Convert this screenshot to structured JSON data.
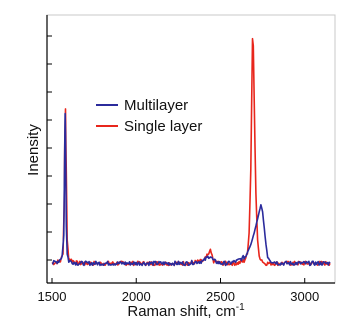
{
  "chart_data": {
    "type": "line",
    "xlabel": "Raman shift, cm",
    "xlabel_superscript": "-1",
    "ylabel": "Inensity",
    "xlim": [
      1500,
      3150
    ],
    "ylim": [
      0,
      1.0
    ],
    "xticks": [
      "1500",
      "2000",
      "2500",
      "3000"
    ],
    "xtick_values": [
      1500,
      2000,
      2500,
      3000
    ],
    "grid": false,
    "legend_position": "upper-left",
    "series": [
      {
        "name": "Multilayer",
        "color": "#2b2b9c",
        "x": [
          1500,
          1540,
          1560,
          1570,
          1575,
          1578,
          1580,
          1582,
          1585,
          1590,
          1600,
          1650,
          1700,
          1800,
          1900,
          2000,
          2100,
          2200,
          2300,
          2400,
          2430,
          2440,
          2450,
          2460,
          2500,
          2550,
          2600,
          2650,
          2680,
          2700,
          2710,
          2720,
          2730,
          2740,
          2750,
          2760,
          2770,
          2780,
          2800,
          2850,
          2900,
          3000,
          3100,
          3150
        ],
        "y": [
          0.02,
          0.03,
          0.05,
          0.14,
          0.46,
          0.66,
          0.58,
          0.42,
          0.18,
          0.06,
          0.03,
          0.02,
          0.02,
          0.02,
          0.02,
          0.02,
          0.02,
          0.02,
          0.02,
          0.03,
          0.05,
          0.05,
          0.04,
          0.03,
          0.02,
          0.02,
          0.03,
          0.05,
          0.1,
          0.15,
          0.18,
          0.21,
          0.24,
          0.27,
          0.24,
          0.17,
          0.1,
          0.05,
          0.03,
          0.02,
          0.02,
          0.02,
          0.02,
          0.02
        ]
      },
      {
        "name": "Single layer",
        "color": "#e8261c",
        "x": [
          1500,
          1550,
          1565,
          1572,
          1576,
          1580,
          1584,
          1590,
          1600,
          1650,
          1700,
          1800,
          1900,
          2000,
          2100,
          2200,
          2300,
          2400,
          2430,
          2440,
          2450,
          2460,
          2500,
          2550,
          2600,
          2640,
          2660,
          2670,
          2680,
          2685,
          2690,
          2695,
          2700,
          2710,
          2720,
          2730,
          2760,
          2800,
          2900,
          3000,
          3100,
          3150
        ],
        "y": [
          0.02,
          0.03,
          0.06,
          0.25,
          0.55,
          0.68,
          0.44,
          0.12,
          0.04,
          0.02,
          0.02,
          0.02,
          0.02,
          0.02,
          0.02,
          0.02,
          0.02,
          0.03,
          0.06,
          0.08,
          0.05,
          0.03,
          0.02,
          0.02,
          0.02,
          0.03,
          0.06,
          0.15,
          0.42,
          0.72,
          0.98,
          0.95,
          0.72,
          0.32,
          0.12,
          0.05,
          0.02,
          0.02,
          0.02,
          0.02,
          0.02,
          0.02
        ]
      }
    ]
  }
}
